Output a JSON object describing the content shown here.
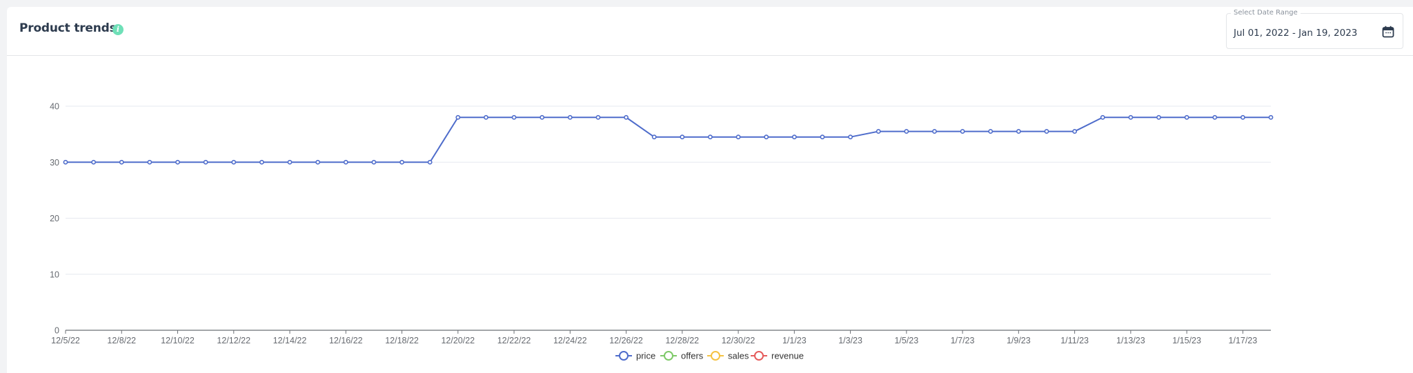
{
  "header": {
    "title": "Product trends",
    "info_icon": "info-icon"
  },
  "date_picker": {
    "label": "Select Date Range",
    "value": "Jul 01, 2022 - Jan 19, 2023",
    "icon": "calendar-icon"
  },
  "colors": {
    "price": "#4e6ccb",
    "offers": "#7dc967",
    "sales": "#f5c242",
    "revenue": "#e55a5a",
    "grid": "#e6e9ef",
    "axis": "#6b6f75",
    "title": "#2d3b4e",
    "info": "#6fe0b8"
  },
  "chart_data": {
    "type": "line",
    "title": "Product trends",
    "xlabel": "",
    "ylabel": "",
    "ylim": [
      0,
      40
    ],
    "yticks": [
      0,
      10,
      20,
      30,
      40
    ],
    "grid": true,
    "legend_position": "bottom",
    "x": [
      "12/5/22",
      "12/7/22",
      "12/8/22",
      "12/9/22",
      "12/10/22",
      "12/11/22",
      "12/12/22",
      "12/13/22",
      "12/14/22",
      "12/15/22",
      "12/16/22",
      "12/17/22",
      "12/18/22",
      "12/19/22",
      "12/20/22",
      "12/21/22",
      "12/22/22",
      "12/23/22",
      "12/24/22",
      "12/25/22",
      "12/26/22",
      "12/27/22",
      "12/28/22",
      "12/29/22",
      "12/30/22",
      "12/31/22",
      "1/1/23",
      "1/2/23",
      "1/3/23",
      "1/4/23",
      "1/5/23",
      "1/6/23",
      "1/7/23",
      "1/8/23",
      "1/9/23",
      "1/10/23",
      "1/11/23",
      "1/12/23",
      "1/13/23",
      "1/14/23",
      "1/15/23",
      "1/16/23",
      "1/17/23",
      "1/18/23"
    ],
    "xtick_labels": [
      "12/5/22",
      "12/8/22",
      "12/10/22",
      "12/12/22",
      "12/14/22",
      "12/16/22",
      "12/18/22",
      "12/20/22",
      "12/22/22",
      "12/24/22",
      "12/26/22",
      "12/28/22",
      "12/30/22",
      "1/1/23",
      "1/3/23",
      "1/5/23",
      "1/7/23",
      "1/9/23",
      "1/11/23",
      "1/13/23",
      "1/15/23",
      "1/17/23"
    ],
    "series": [
      {
        "name": "price",
        "values": [
          30,
          30,
          30,
          30,
          30,
          30,
          30,
          30,
          30,
          30,
          30,
          30,
          30,
          30,
          38,
          38,
          38,
          38,
          38,
          38,
          38,
          34.5,
          34.5,
          34.5,
          34.5,
          34.5,
          34.5,
          34.5,
          34.5,
          35.5,
          35.5,
          35.5,
          35.5,
          35.5,
          35.5,
          35.5,
          35.5,
          38,
          38,
          38,
          38,
          38,
          38,
          38
        ]
      },
      {
        "name": "offers",
        "values": []
      },
      {
        "name": "sales",
        "values": []
      },
      {
        "name": "revenue",
        "values": []
      }
    ],
    "legend": [
      "price",
      "offers",
      "sales",
      "revenue"
    ]
  }
}
